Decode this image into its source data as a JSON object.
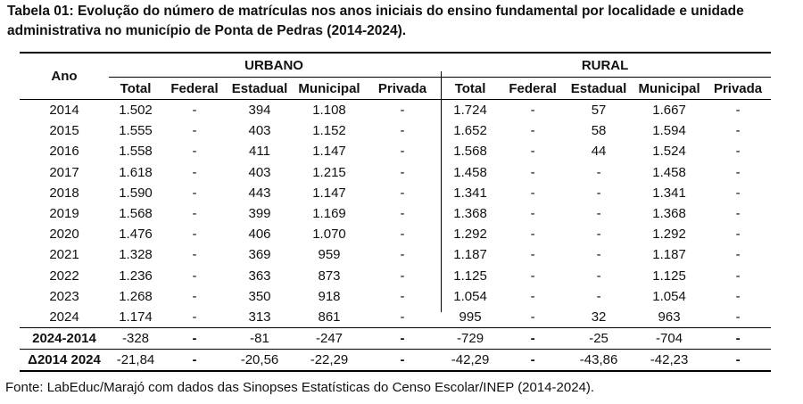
{
  "caption": "Tabela 01: Evolução do número de matrículas nos anos iniciais do ensino fundamental por localidade e unidade administrativa no município de Ponta de Pedras (2014-2024).",
  "headers": {
    "ano": "Ano",
    "urbano": "URBANO",
    "rural": "RURAL",
    "columns": [
      "Total",
      "Federal",
      "Estadual",
      "Municipal",
      "Privada",
      "Total",
      "Federal",
      "Estadual",
      "Municipal",
      "Privada"
    ]
  },
  "rows": [
    {
      "ano": "2014",
      "cells": [
        "1.502",
        "-",
        "394",
        "1.108",
        "-",
        "1.724",
        "-",
        "57",
        "1.667",
        "-"
      ]
    },
    {
      "ano": "2015",
      "cells": [
        "1.555",
        "-",
        "403",
        "1.152",
        "-",
        "1.652",
        "-",
        "58",
        "1.594",
        "-"
      ]
    },
    {
      "ano": "2016",
      "cells": [
        "1.558",
        "-",
        "411",
        "1.147",
        "-",
        "1.568",
        "-",
        "44",
        "1.524",
        "-"
      ]
    },
    {
      "ano": "2017",
      "cells": [
        "1.618",
        "-",
        "403",
        "1.215",
        "-",
        "1.458",
        "-",
        "-",
        "1.458",
        "-"
      ]
    },
    {
      "ano": "2018",
      "cells": [
        "1.590",
        "-",
        "443",
        "1.147",
        "-",
        "1.341",
        "-",
        "-",
        "1.341",
        "-"
      ]
    },
    {
      "ano": "2019",
      "cells": [
        "1.568",
        "-",
        "399",
        "1.169",
        "-",
        "1.368",
        "-",
        "-",
        "1.368",
        "-"
      ]
    },
    {
      "ano": "2020",
      "cells": [
        "1.476",
        "-",
        "406",
        "1.070",
        "-",
        "1.292",
        "-",
        "-",
        "1.292",
        "-"
      ]
    },
    {
      "ano": "2021",
      "cells": [
        "1.328",
        "-",
        "369",
        "959",
        "-",
        "1.187",
        "-",
        "-",
        "1.187",
        "-"
      ]
    },
    {
      "ano": "2022",
      "cells": [
        "1.236",
        "-",
        "363",
        "873",
        "-",
        "1.125",
        "-",
        "-",
        "1.125",
        "-"
      ]
    },
    {
      "ano": "2023",
      "cells": [
        "1.268",
        "-",
        "350",
        "918",
        "-",
        "1.054",
        "-",
        "-",
        "1.054",
        "-"
      ]
    },
    {
      "ano": "2024",
      "cells": [
        "1.174",
        "-",
        "313",
        "861",
        "-",
        "995",
        "-",
        "32",
        "963",
        "-"
      ]
    }
  ],
  "summary": [
    {
      "label": "2024-2014",
      "cells": [
        "-328",
        "-",
        "-81",
        "-247",
        "-",
        "-729",
        "-",
        "-25",
        "-704",
        "-"
      ]
    },
    {
      "label": "Δ2014 2024",
      "cells": [
        "-21,84",
        "-",
        "-20,56",
        "-22,29",
        "-",
        "-42,29",
        "-",
        "-43,86",
        "-42,23",
        "-"
      ]
    }
  ],
  "source": "Fonte: LabEduc/Marajó com dados das Sinopses Estatísticas do Censo Escolar/INEP (2014-2024)."
}
